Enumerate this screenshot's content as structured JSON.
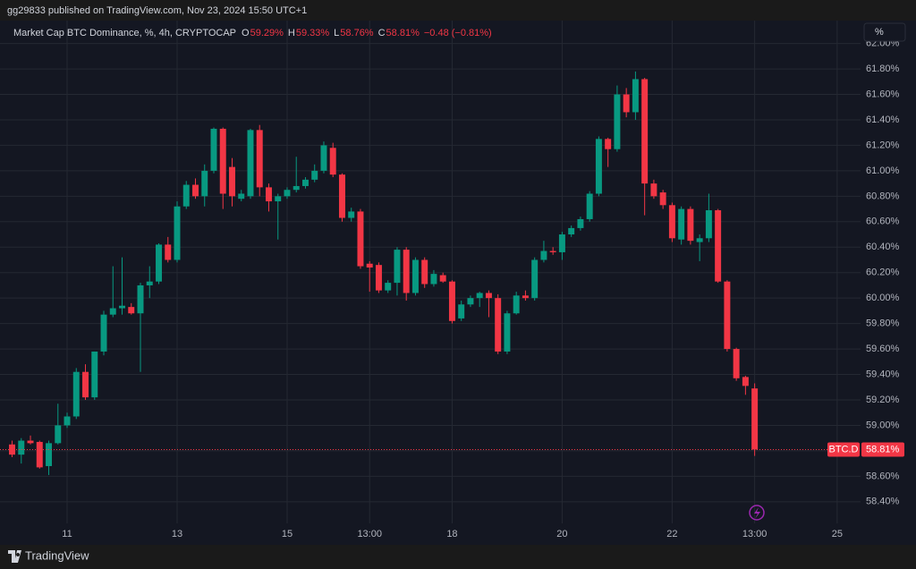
{
  "header": {
    "published": "gg29833 published on TradingView.com, Nov 23, 2024 15:50 UTC+1"
  },
  "footer": {
    "brand": "TradingView"
  },
  "chart_data": {
    "type": "candlestick",
    "title": "Market Cap BTC Dominance, %, 4h, CRYPTOCAP",
    "ohlc_legend": [
      {
        "key": "O",
        "label": "59.29%"
      },
      {
        "key": "H",
        "label": "59.33%"
      },
      {
        "key": "L",
        "label": "58.76%"
      },
      {
        "key": "C",
        "label": "58.81%"
      }
    ],
    "change": "−0.48 (−0.81%)",
    "scale_button": "%",
    "up_color": "#089981",
    "down_color": "#f23645",
    "grid": true,
    "last_price": {
      "symbol": "BTC.D",
      "value": 58.81,
      "label": "58.81%"
    },
    "open": [
      58.85,
      58.77,
      58.88,
      58.87,
      58.68,
      58.86,
      59.0,
      59.07,
      59.42,
      59.22,
      59.58,
      59.87,
      59.92,
      59.93,
      59.88,
      60.1,
      60.13,
      60.42,
      60.3,
      60.72,
      60.89,
      60.8,
      61.0,
      61.33,
      61.03,
      60.78,
      60.8,
      61.32,
      60.87,
      60.76,
      60.8,
      60.85,
      60.88,
      60.93,
      61.0,
      61.18,
      60.97,
      60.63,
      60.68,
      60.27,
      60.26,
      60.06,
      60.12,
      60.38,
      60.04,
      60.3,
      60.11,
      60.18,
      60.13,
      59.84,
      59.95,
      60.0,
      60.04,
      60.0,
      59.58,
      59.88,
      60.02,
      60.0,
      60.3,
      60.37,
      60.36,
      60.5,
      60.55,
      60.62,
      60.82,
      61.25,
      61.17,
      61.6,
      61.46,
      61.72,
      60.9,
      60.83,
      60.73,
      60.46,
      60.7,
      60.44,
      60.47,
      60.69,
      60.13,
      59.6,
      59.38,
      59.29
    ],
    "high": [
      58.88,
      58.9,
      58.92,
      58.88,
      58.88,
      59.17,
      59.1,
      59.45,
      59.48,
      59.58,
      59.9,
      60.25,
      60.32,
      59.96,
      60.12,
      60.25,
      60.43,
      60.48,
      60.76,
      60.92,
      60.94,
      61.05,
      61.34,
      61.34,
      61.1,
      60.85,
      61.33,
      61.36,
      60.9,
      60.82,
      60.87,
      61.11,
      60.95,
      61.05,
      61.23,
      61.22,
      60.98,
      60.71,
      60.7,
      60.29,
      60.28,
      60.14,
      60.4,
      60.4,
      60.32,
      60.32,
      60.22,
      60.2,
      60.14,
      59.98,
      60.02,
      60.05,
      60.06,
      60.03,
      59.9,
      60.05,
      60.06,
      60.32,
      60.45,
      60.4,
      60.52,
      60.57,
      60.64,
      60.84,
      61.27,
      61.26,
      61.67,
      61.65,
      61.78,
      61.73,
      60.93,
      60.85,
      60.75,
      60.72,
      60.72,
      60.5,
      60.82,
      60.7,
      60.14,
      59.61,
      59.39,
      59.33
    ],
    "low": [
      58.75,
      58.7,
      58.85,
      58.66,
      58.61,
      58.85,
      58.98,
      59.05,
      59.2,
      59.2,
      59.55,
      59.85,
      59.87,
      59.87,
      59.42,
      60.0,
      60.11,
      60.28,
      60.28,
      60.7,
      60.78,
      60.72,
      60.98,
      60.7,
      60.72,
      60.76,
      60.78,
      60.8,
      60.68,
      60.46,
      60.78,
      60.83,
      60.86,
      60.91,
      60.98,
      60.95,
      60.6,
      60.6,
      60.23,
      60.05,
      60.04,
      60.04,
      60.02,
      59.98,
      60.02,
      60.08,
      60.09,
      60.12,
      59.8,
      59.82,
      59.93,
      59.93,
      59.85,
      59.56,
      59.56,
      59.87,
      59.98,
      59.98,
      60.28,
      60.34,
      60.3,
      60.48,
      60.53,
      60.6,
      60.8,
      61.03,
      61.15,
      61.42,
      61.4,
      60.65,
      60.78,
      60.7,
      60.44,
      60.42,
      60.42,
      60.29,
      60.44,
      60.12,
      59.58,
      59.35,
      59.24,
      58.76
    ],
    "close": [
      58.77,
      58.88,
      58.86,
      58.67,
      58.86,
      59.0,
      59.07,
      59.42,
      59.22,
      59.58,
      59.87,
      59.92,
      59.94,
      59.88,
      60.1,
      60.13,
      60.42,
      60.3,
      60.72,
      60.89,
      60.8,
      61.0,
      61.33,
      60.82,
      60.8,
      60.82,
      61.32,
      60.87,
      60.76,
      60.8,
      60.85,
      60.88,
      60.93,
      61.0,
      61.2,
      60.97,
      60.63,
      60.68,
      60.25,
      60.24,
      60.06,
      60.12,
      60.38,
      60.04,
      60.3,
      60.11,
      60.19,
      60.13,
      59.82,
      59.95,
      60.0,
      60.04,
      60.0,
      59.58,
      59.88,
      60.02,
      60.0,
      60.3,
      60.37,
      60.36,
      60.5,
      60.55,
      60.62,
      60.82,
      61.25,
      61.17,
      61.6,
      61.46,
      61.72,
      60.9,
      60.8,
      60.73,
      60.47,
      60.7,
      60.45,
      60.47,
      60.69,
      60.13,
      59.6,
      59.37,
      59.31,
      58.81
    ],
    "xlim": [
      -1.32,
      92.55
    ],
    "xticks": [
      {
        "value": 6,
        "label": "11"
      },
      {
        "value": 18,
        "label": "13"
      },
      {
        "value": 30,
        "label": "15"
      },
      {
        "value": 39,
        "label": "13:00"
      },
      {
        "value": 48,
        "label": "18"
      },
      {
        "value": 60,
        "label": "20"
      },
      {
        "value": 72,
        "label": "22"
      },
      {
        "value": 81,
        "label": "13:00"
      },
      {
        "value": 90,
        "label": "25"
      }
    ],
    "ylim": [
      58.23,
      62.18
    ],
    "yticks": [
      {
        "value": 58.4,
        "label": "58.40%"
      },
      {
        "value": 58.6,
        "label": "58.60%"
      },
      {
        "value": 58.8,
        "label": "58.80%"
      },
      {
        "value": 59.0,
        "label": "59.00%"
      },
      {
        "value": 59.2,
        "label": "59.20%"
      },
      {
        "value": 59.4,
        "label": "59.40%"
      },
      {
        "value": 59.6,
        "label": "59.60%"
      },
      {
        "value": 59.8,
        "label": "59.80%"
      },
      {
        "value": 60.0,
        "label": "60.00%"
      },
      {
        "value": 60.2,
        "label": "60.20%"
      },
      {
        "value": 60.4,
        "label": "60.40%"
      },
      {
        "value": 60.6,
        "label": "60.60%"
      },
      {
        "value": 60.8,
        "label": "60.80%"
      },
      {
        "value": 61.0,
        "label": "61.00%"
      },
      {
        "value": 61.2,
        "label": "61.20%"
      },
      {
        "value": 61.4,
        "label": "61.40%"
      },
      {
        "value": 61.6,
        "label": "61.60%"
      },
      {
        "value": 61.8,
        "label": "61.80%"
      },
      {
        "value": 62.0,
        "label": "62.00%"
      }
    ]
  }
}
